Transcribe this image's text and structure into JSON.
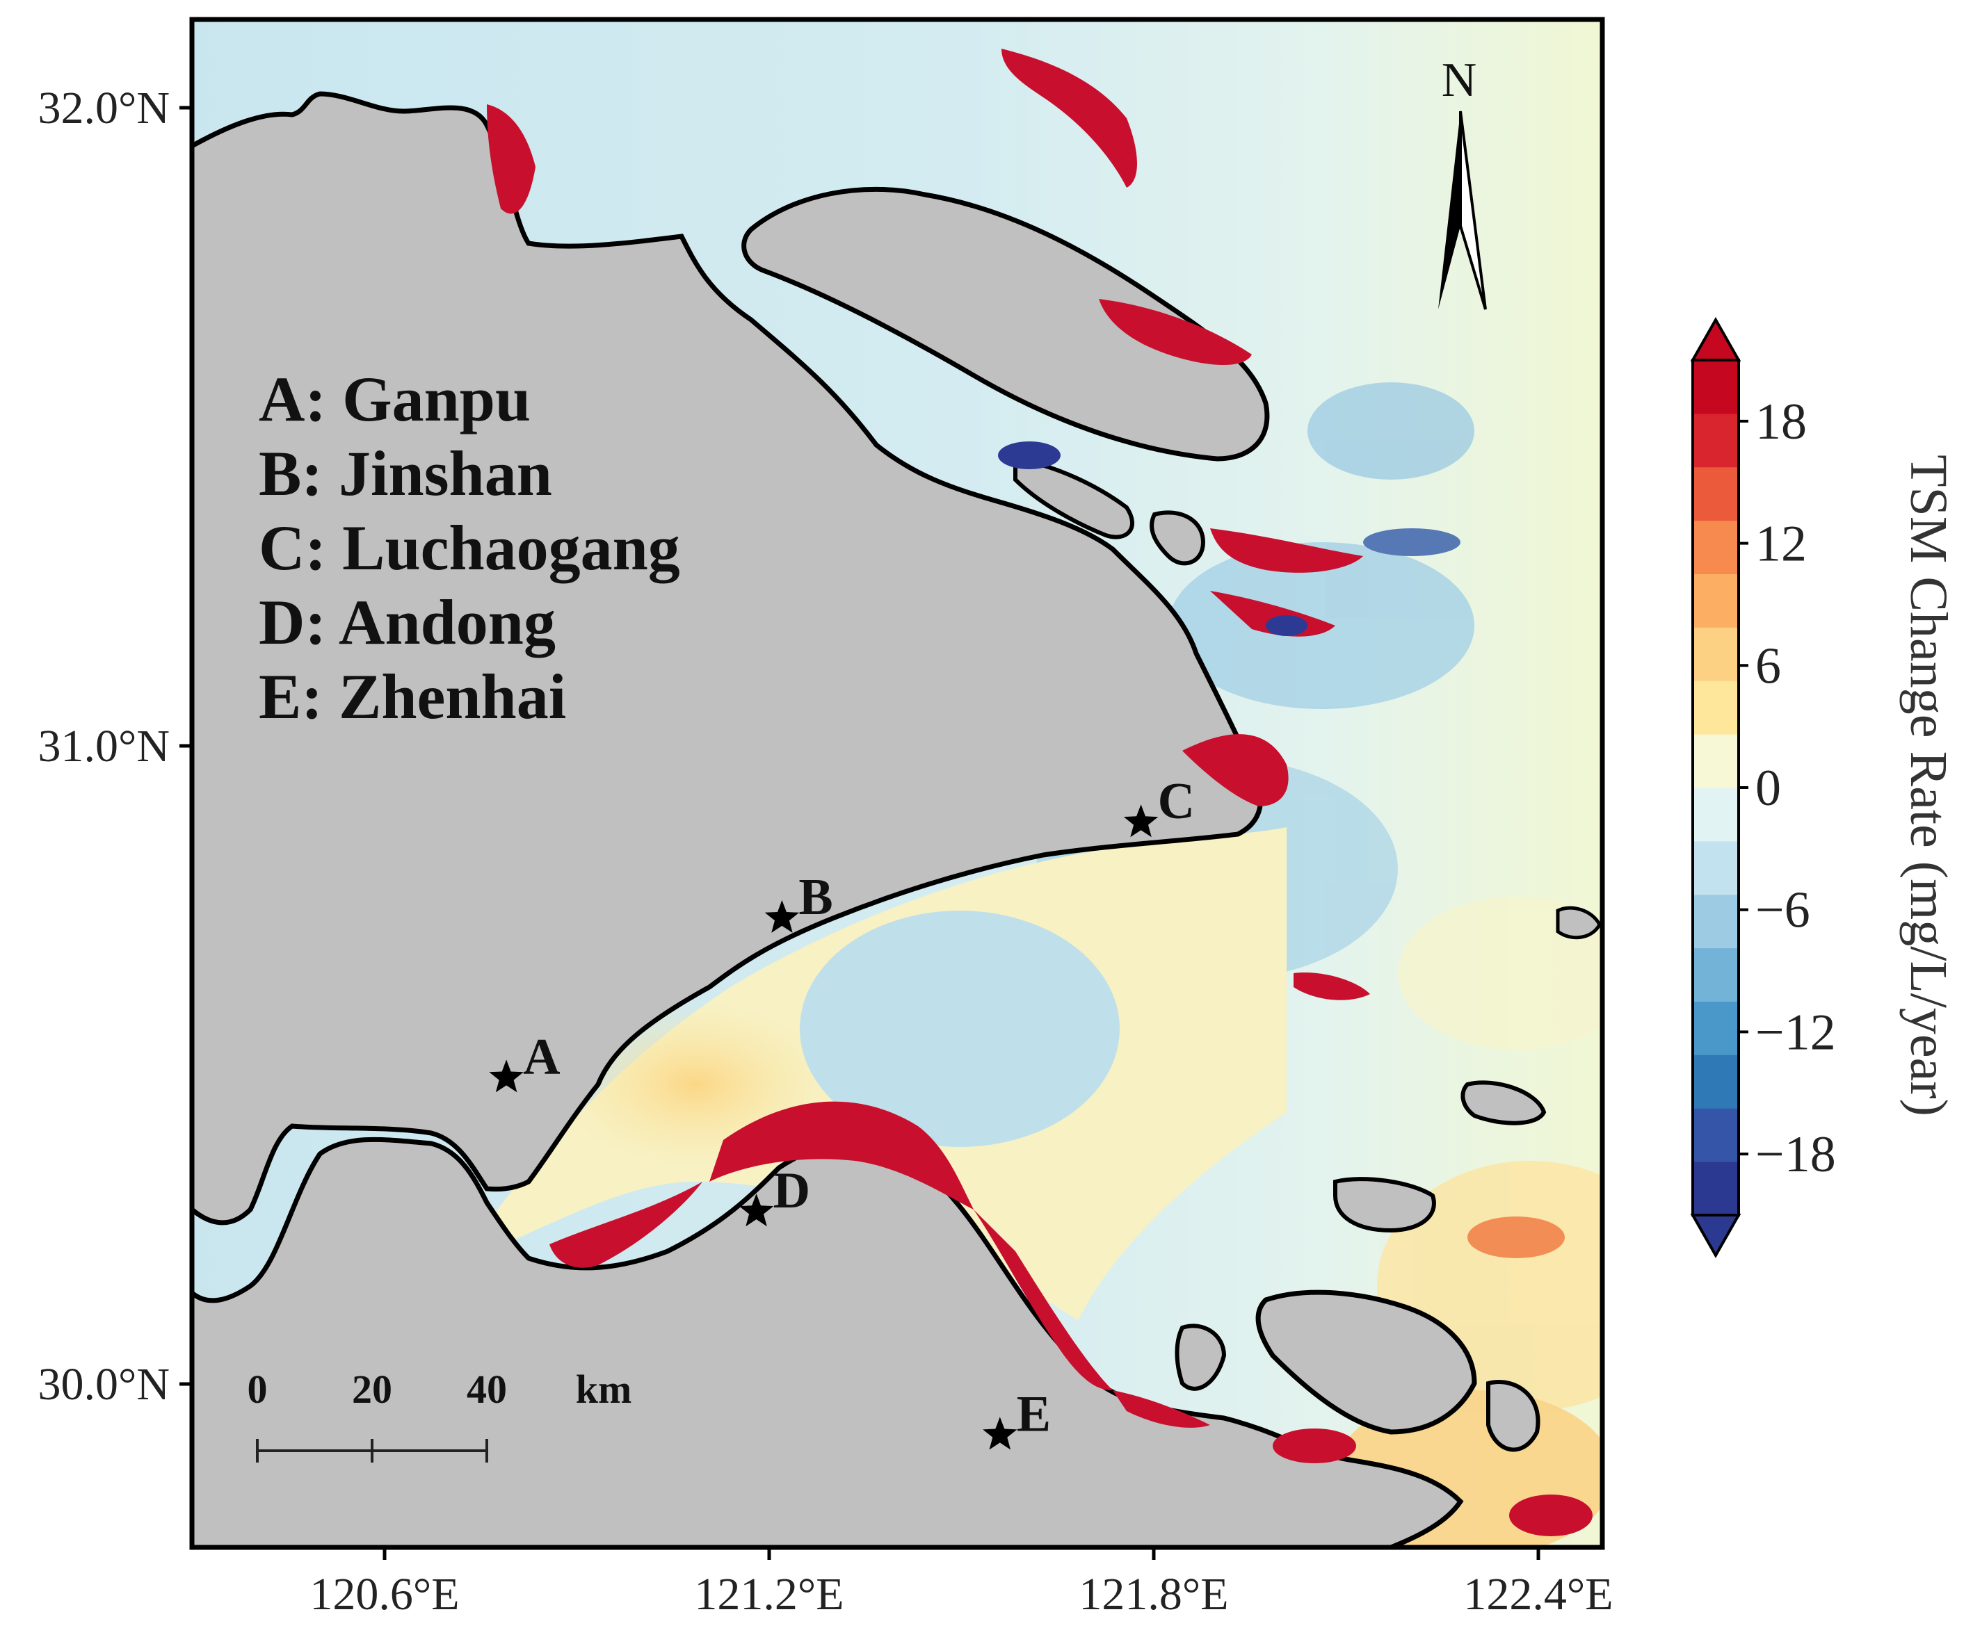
{
  "map": {
    "lat_ticks": [
      {
        "value": 32.0,
        "label": "32.0°N"
      },
      {
        "value": 31.0,
        "label": "31.0°N"
      },
      {
        "value": 30.0,
        "label": "30.0°N"
      }
    ],
    "lon_ticks": [
      {
        "value": 120.6,
        "label": "120.6°E"
      },
      {
        "value": 121.2,
        "label": "121.2°E"
      },
      {
        "value": 121.8,
        "label": "121.8°E"
      },
      {
        "value": 122.4,
        "label": "122.4°E"
      }
    ],
    "station_legend": [
      "A: Ganpu",
      "B: Jinshan",
      "C: Luchaogang",
      "D: Andong",
      "E: Zhenhai"
    ],
    "stations": [
      {
        "id": "A",
        "name": "Ganpu",
        "lon": 120.79,
        "lat": 30.48
      },
      {
        "id": "B",
        "name": "Jinshan",
        "lon": 121.22,
        "lat": 30.73
      },
      {
        "id": "C",
        "name": "Luchaogang",
        "lon": 121.78,
        "lat": 30.88
      },
      {
        "id": "D",
        "name": "Andong",
        "lon": 121.18,
        "lat": 30.27
      },
      {
        "id": "E",
        "name": "Zhenhai",
        "lon": 121.56,
        "lat": 29.92
      }
    ],
    "north_label": "N",
    "scale_bar": {
      "labels": [
        "0",
        "20",
        "40"
      ],
      "unit": "km"
    },
    "colors": {
      "land": "#c0c0c0",
      "coast": "#000000",
      "ocean_zero": "#e0f3f1",
      "strong_positive": "#c8102e",
      "strong_negative": "#2c3a93"
    }
  },
  "colorbar": {
    "title": "TSM Change Rate (mg/L/year)",
    "ticks": [
      "18",
      "12",
      "6",
      "0",
      "−6",
      "−12",
      "−18"
    ],
    "range": [
      -21,
      21
    ],
    "extend": "both",
    "colors": [
      "#2b3990",
      "#3555a8",
      "#2f79b7",
      "#4a97c9",
      "#74b3d8",
      "#9dcbe3",
      "#c3e2ef",
      "#e2f3f3",
      "#f7f9d6",
      "#fee79b",
      "#fdd184",
      "#fcae62",
      "#f68a4f",
      "#ea5a3b",
      "#d9252e",
      "#c5081f"
    ]
  }
}
